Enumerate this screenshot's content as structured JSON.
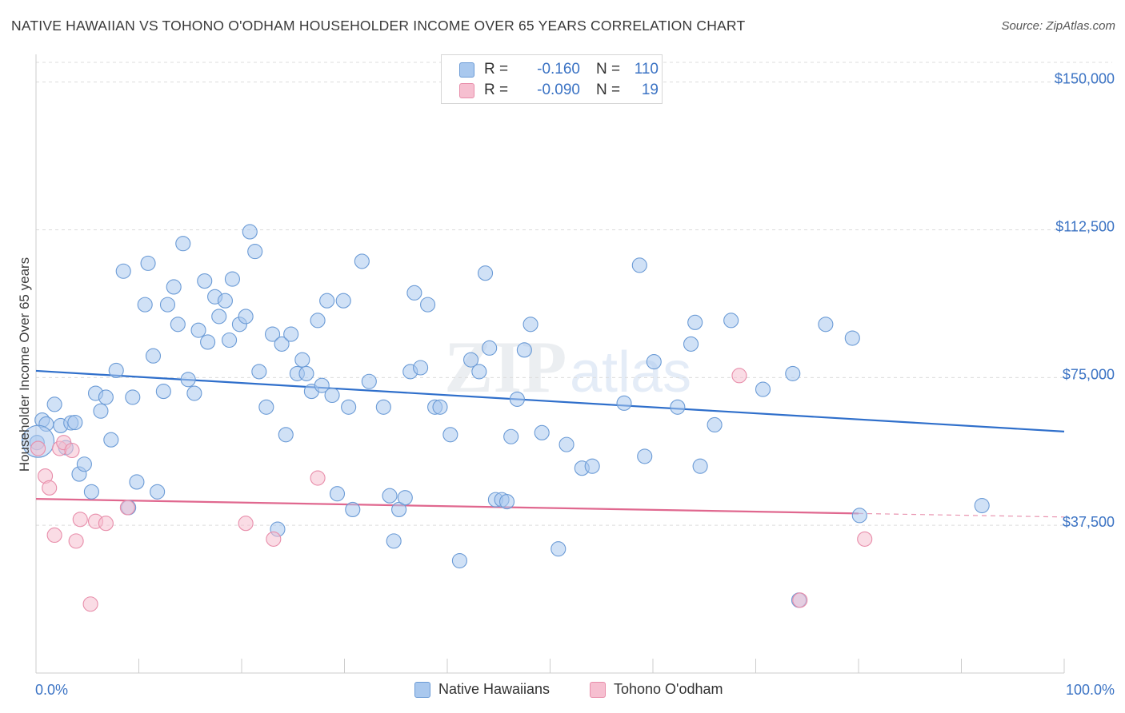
{
  "title": "NATIVE HAWAIIAN VS TOHONO O'ODHAM HOUSEHOLDER INCOME OVER 65 YEARS CORRELATION CHART",
  "source": "Source: ZipAtlas.com",
  "colors": {
    "blue_fill": "#a9c8ee",
    "blue_stroke": "#6b9bd6",
    "blue_line": "#2f6fcb",
    "pink_fill": "#f6bfd0",
    "pink_stroke": "#e88daa",
    "pink_line": "#e0688f",
    "tick_text": "#3b73c4",
    "grid": "#dcdcdc"
  },
  "stats": [
    {
      "r_label": "R =",
      "r_value": "-0.160",
      "n_label": "N =",
      "n_value": "110",
      "series": "blue"
    },
    {
      "r_label": "R =",
      "r_value": "-0.090",
      "n_label": "N =",
      "n_value": "19",
      "series": "pink"
    }
  ],
  "legend": [
    "Native Hawaiians",
    "Tohono O'odham"
  ],
  "chart_data": {
    "type": "scatter",
    "title": "NATIVE HAWAIIAN VS TOHONO O'ODHAM HOUSEHOLDER INCOME OVER 65 YEARS CORRELATION CHART",
    "xlabel": "",
    "ylabel": "Householder Income Over 65 years",
    "xlim": [
      0,
      100
    ],
    "ylim": [
      0,
      155000
    ],
    "x_tick_labels": [
      "0.0%",
      "100.0%"
    ],
    "y_ticks": [
      37500,
      75000,
      112500,
      150000
    ],
    "y_tick_labels": [
      "$37,500",
      "$75,000",
      "$112,500",
      "$150,000"
    ],
    "grid": true,
    "legend_position": "bottom",
    "series": [
      {
        "name": "Native Hawaiians",
        "color": "#a9c8ee",
        "trend": {
          "x": [
            0,
            100
          ],
          "y": [
            76700,
            61300
          ]
        },
        "points": [
          [
            0.1,
            58500
          ],
          [
            0.6,
            64200
          ],
          [
            1.0,
            63200
          ],
          [
            1.8,
            68200
          ],
          [
            2.4,
            62800
          ],
          [
            2.9,
            57200
          ],
          [
            3.4,
            63500
          ],
          [
            3.8,
            63600
          ],
          [
            4.2,
            50500
          ],
          [
            4.7,
            53000
          ],
          [
            5.4,
            46000
          ],
          [
            5.8,
            71000
          ],
          [
            6.3,
            66500
          ],
          [
            6.8,
            70000
          ],
          [
            7.3,
            59200
          ],
          [
            7.8,
            76800
          ],
          [
            8.5,
            102000
          ],
          [
            9.0,
            42000
          ],
          [
            9.4,
            70000
          ],
          [
            9.8,
            48500
          ],
          [
            10.6,
            93500
          ],
          [
            10.9,
            104000
          ],
          [
            11.4,
            80500
          ],
          [
            11.8,
            46000
          ],
          [
            12.4,
            71500
          ],
          [
            12.8,
            93500
          ],
          [
            13.4,
            98000
          ],
          [
            13.8,
            88500
          ],
          [
            14.3,
            109000
          ],
          [
            14.8,
            74500
          ],
          [
            15.4,
            71000
          ],
          [
            15.8,
            87000
          ],
          [
            16.4,
            99500
          ],
          [
            16.7,
            84000
          ],
          [
            17.4,
            95500
          ],
          [
            17.8,
            90500
          ],
          [
            18.4,
            94500
          ],
          [
            18.8,
            84500
          ],
          [
            19.1,
            100000
          ],
          [
            19.8,
            88500
          ],
          [
            20.4,
            90500
          ],
          [
            20.8,
            112000
          ],
          [
            21.3,
            107000
          ],
          [
            21.7,
            76500
          ],
          [
            22.4,
            67500
          ],
          [
            23.0,
            86000
          ],
          [
            23.5,
            36500
          ],
          [
            23.9,
            83500
          ],
          [
            24.3,
            60500
          ],
          [
            24.8,
            86000
          ],
          [
            25.4,
            76000
          ],
          [
            25.9,
            79500
          ],
          [
            26.3,
            76000
          ],
          [
            26.8,
            71500
          ],
          [
            27.4,
            89500
          ],
          [
            27.8,
            73000
          ],
          [
            28.3,
            94500
          ],
          [
            28.8,
            70500
          ],
          [
            29.3,
            45500
          ],
          [
            29.9,
            94500
          ],
          [
            30.4,
            67500
          ],
          [
            30.8,
            41500
          ],
          [
            31.7,
            104500
          ],
          [
            32.4,
            74000
          ],
          [
            33.8,
            67500
          ],
          [
            34.4,
            45000
          ],
          [
            34.8,
            33500
          ],
          [
            35.3,
            41500
          ],
          [
            35.9,
            44500
          ],
          [
            36.4,
            76500
          ],
          [
            36.8,
            96500
          ],
          [
            37.4,
            77500
          ],
          [
            38.1,
            93500
          ],
          [
            38.8,
            67500
          ],
          [
            39.3,
            67500
          ],
          [
            40.3,
            60500
          ],
          [
            41.2,
            28500
          ],
          [
            42.3,
            79500
          ],
          [
            43.1,
            76500
          ],
          [
            43.7,
            101500
          ],
          [
            44.1,
            82500
          ],
          [
            44.7,
            44000
          ],
          [
            45.3,
            44000
          ],
          [
            45.8,
            43500
          ],
          [
            46.2,
            60000
          ],
          [
            46.8,
            69500
          ],
          [
            47.5,
            82000
          ],
          [
            48.1,
            88500
          ],
          [
            49.2,
            61000
          ],
          [
            50.8,
            31500
          ],
          [
            51.6,
            58000
          ],
          [
            53.1,
            52000
          ],
          [
            54.1,
            52500
          ],
          [
            57.2,
            68500
          ],
          [
            58.7,
            103500
          ],
          [
            59.2,
            55000
          ],
          [
            60.1,
            79000
          ],
          [
            62.4,
            67500
          ],
          [
            63.7,
            83500
          ],
          [
            64.1,
            89000
          ],
          [
            64.6,
            52500
          ],
          [
            66.0,
            63000
          ],
          [
            67.6,
            89500
          ],
          [
            70.7,
            72000
          ],
          [
            73.6,
            76000
          ],
          [
            74.2,
            18500
          ],
          [
            76.8,
            88500
          ],
          [
            79.4,
            85000
          ],
          [
            80.1,
            40000
          ],
          [
            92.0,
            42500
          ]
        ]
      },
      {
        "name": "Tohono O'odham",
        "color": "#f6bfd0",
        "trend": {
          "x": [
            0,
            80
          ],
          "y": [
            44200,
            40500
          ]
        },
        "trend_dashed": {
          "x": [
            80,
            100
          ],
          "y": [
            40500,
            39600
          ]
        },
        "points": [
          [
            0.2,
            57000
          ],
          [
            0.9,
            50000
          ],
          [
            1.3,
            47000
          ],
          [
            1.8,
            35000
          ],
          [
            2.3,
            57000
          ],
          [
            2.7,
            58500
          ],
          [
            3.5,
            56500
          ],
          [
            3.9,
            33500
          ],
          [
            4.3,
            39000
          ],
          [
            5.3,
            17500
          ],
          [
            5.8,
            38500
          ],
          [
            6.8,
            38000
          ],
          [
            8.9,
            42000
          ],
          [
            20.4,
            38000
          ],
          [
            23.1,
            34000
          ],
          [
            27.4,
            49500
          ],
          [
            68.4,
            75500
          ],
          [
            74.3,
            18500
          ],
          [
            80.6,
            34000
          ]
        ]
      }
    ]
  }
}
